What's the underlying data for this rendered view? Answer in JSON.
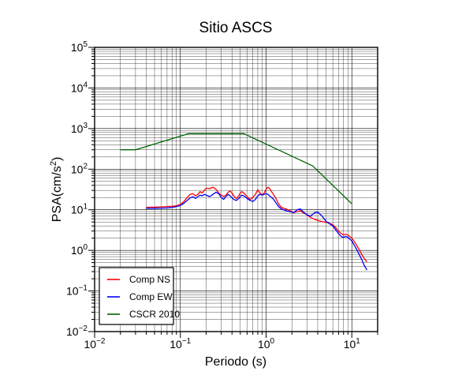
{
  "chart_data": {
    "type": "line",
    "title": "Sitio ASCS",
    "xlabel": "Periodo (s)",
    "ylabel": "PSA(cm/s²)",
    "xscale": "log",
    "yscale": "log",
    "xlim": [
      0.01,
      20
    ],
    "ylim": [
      0.01,
      100000
    ],
    "grid": true,
    "legend": "bottom-left",
    "x_ticks": [
      {
        "base": "10",
        "exp": "−2",
        "value": 0.01
      },
      {
        "base": "10",
        "exp": "−1",
        "value": 0.1
      },
      {
        "base": "10",
        "exp": "0",
        "value": 1
      },
      {
        "base": "10",
        "exp": "1",
        "value": 10
      }
    ],
    "y_ticks": [
      {
        "base": "10",
        "exp": "−2",
        "value": 0.01
      },
      {
        "base": "10",
        "exp": "−1",
        "value": 0.1
      },
      {
        "base": "10",
        "exp": "0",
        "value": 1
      },
      {
        "base": "10",
        "exp": "1",
        "value": 10
      },
      {
        "base": "10",
        "exp": "2",
        "value": 100
      },
      {
        "base": "10",
        "exp": "3",
        "value": 1000
      },
      {
        "base": "10",
        "exp": "4",
        "value": 10000
      },
      {
        "base": "10",
        "exp": "5",
        "value": 100000
      }
    ],
    "series": [
      {
        "name": "Comp NS",
        "color": "#ff0000",
        "points": [
          [
            0.04,
            11.5
          ],
          [
            0.05,
            11.6
          ],
          [
            0.06,
            11.8
          ],
          [
            0.07,
            12.0
          ],
          [
            0.08,
            12.2
          ],
          [
            0.09,
            12.6
          ],
          [
            0.1,
            13.5
          ],
          [
            0.11,
            16
          ],
          [
            0.12,
            20
          ],
          [
            0.13,
            24
          ],
          [
            0.14,
            25
          ],
          [
            0.15,
            22
          ],
          [
            0.16,
            24
          ],
          [
            0.17,
            28
          ],
          [
            0.18,
            26
          ],
          [
            0.19,
            30
          ],
          [
            0.2,
            34
          ],
          [
            0.22,
            33
          ],
          [
            0.24,
            36
          ],
          [
            0.26,
            32
          ],
          [
            0.28,
            26
          ],
          [
            0.3,
            23
          ],
          [
            0.32,
            21
          ],
          [
            0.34,
            23
          ],
          [
            0.36,
            27
          ],
          [
            0.38,
            29
          ],
          [
            0.4,
            26
          ],
          [
            0.42,
            22
          ],
          [
            0.45,
            19
          ],
          [
            0.48,
            22
          ],
          [
            0.5,
            26
          ],
          [
            0.52,
            28
          ],
          [
            0.55,
            26
          ],
          [
            0.6,
            21
          ],
          [
            0.65,
            18
          ],
          [
            0.7,
            20
          ],
          [
            0.75,
            24
          ],
          [
            0.8,
            31
          ],
          [
            0.85,
            26
          ],
          [
            0.9,
            23
          ],
          [
            0.95,
            26
          ],
          [
            1.0,
            32
          ],
          [
            1.05,
            36
          ],
          [
            1.1,
            33
          ],
          [
            1.2,
            25
          ],
          [
            1.3,
            19
          ],
          [
            1.4,
            14
          ],
          [
            1.5,
            11.5
          ],
          [
            1.7,
            10.5
          ],
          [
            1.9,
            9.5
          ],
          [
            2.1,
            8.5
          ],
          [
            2.3,
            9
          ],
          [
            2.5,
            9.5
          ],
          [
            2.7,
            8.5
          ],
          [
            3.0,
            7.5
          ],
          [
            3.3,
            6.5
          ],
          [
            3.7,
            5.8
          ],
          [
            4.2,
            5.3
          ],
          [
            4.7,
            5.0
          ],
          [
            5.3,
            4.8
          ],
          [
            6.0,
            4.3
          ],
          [
            6.5,
            3.6
          ],
          [
            7.0,
            3.0
          ],
          [
            7.5,
            2.6
          ],
          [
            8.0,
            2.4
          ],
          [
            8.5,
            2.5
          ],
          [
            9.0,
            2.4
          ],
          [
            10,
            2.0
          ],
          [
            11,
            1.5
          ],
          [
            12,
            1.1
          ],
          [
            13,
            0.8
          ],
          [
            14,
            0.62
          ],
          [
            15,
            0.52
          ]
        ]
      },
      {
        "name": "Comp EW",
        "color": "#0000ff",
        "points": [
          [
            0.04,
            10.8
          ],
          [
            0.05,
            10.9
          ],
          [
            0.06,
            11.0
          ],
          [
            0.07,
            11.1
          ],
          [
            0.08,
            11.4
          ],
          [
            0.09,
            12.0
          ],
          [
            0.1,
            12.8
          ],
          [
            0.11,
            14.5
          ],
          [
            0.12,
            17
          ],
          [
            0.13,
            19.5
          ],
          [
            0.14,
            21
          ],
          [
            0.15,
            19
          ],
          [
            0.16,
            21
          ],
          [
            0.17,
            23
          ],
          [
            0.18,
            22
          ],
          [
            0.19,
            24
          ],
          [
            0.2,
            23
          ],
          [
            0.22,
            21
          ],
          [
            0.24,
            24
          ],
          [
            0.26,
            27
          ],
          [
            0.28,
            25
          ],
          [
            0.3,
            20
          ],
          [
            0.32,
            18
          ],
          [
            0.34,
            21
          ],
          [
            0.36,
            24
          ],
          [
            0.38,
            22
          ],
          [
            0.4,
            20
          ],
          [
            0.42,
            18
          ],
          [
            0.45,
            17
          ],
          [
            0.48,
            19
          ],
          [
            0.5,
            21
          ],
          [
            0.52,
            23
          ],
          [
            0.55,
            22
          ],
          [
            0.6,
            19
          ],
          [
            0.65,
            17
          ],
          [
            0.7,
            16
          ],
          [
            0.75,
            18
          ],
          [
            0.8,
            22
          ],
          [
            0.85,
            24
          ],
          [
            0.9,
            23
          ],
          [
            0.95,
            24
          ],
          [
            1.0,
            25
          ],
          [
            1.05,
            24
          ],
          [
            1.1,
            22
          ],
          [
            1.2,
            19
          ],
          [
            1.3,
            15
          ],
          [
            1.4,
            12
          ],
          [
            1.5,
            10.5
          ],
          [
            1.7,
            9.5
          ],
          [
            1.9,
            9
          ],
          [
            2.1,
            8.5
          ],
          [
            2.3,
            10
          ],
          [
            2.5,
            10.5
          ],
          [
            2.7,
            9
          ],
          [
            3.0,
            7.5
          ],
          [
            3.3,
            7.0
          ],
          [
            3.7,
            8.5
          ],
          [
            4.0,
            8.8
          ],
          [
            4.5,
            7.0
          ],
          [
            5.0,
            5.2
          ],
          [
            5.5,
            4.5
          ],
          [
            6.0,
            4.0
          ],
          [
            6.5,
            3.2
          ],
          [
            7.0,
            2.6
          ],
          [
            7.5,
            2.2
          ],
          [
            8.0,
            2.1
          ],
          [
            8.5,
            2.2
          ],
          [
            9.0,
            2.1
          ],
          [
            10,
            1.7
          ],
          [
            11,
            1.2
          ],
          [
            12,
            0.85
          ],
          [
            13,
            0.6
          ],
          [
            14,
            0.42
          ],
          [
            15,
            0.33
          ]
        ]
      },
      {
        "name": "CSCR 2010",
        "color": "#006400",
        "points": [
          [
            0.02,
            300
          ],
          [
            0.03,
            300
          ],
          [
            0.125,
            750
          ],
          [
            0.55,
            750
          ],
          [
            3.5,
            120
          ],
          [
            10,
            14
          ]
        ]
      }
    ]
  }
}
